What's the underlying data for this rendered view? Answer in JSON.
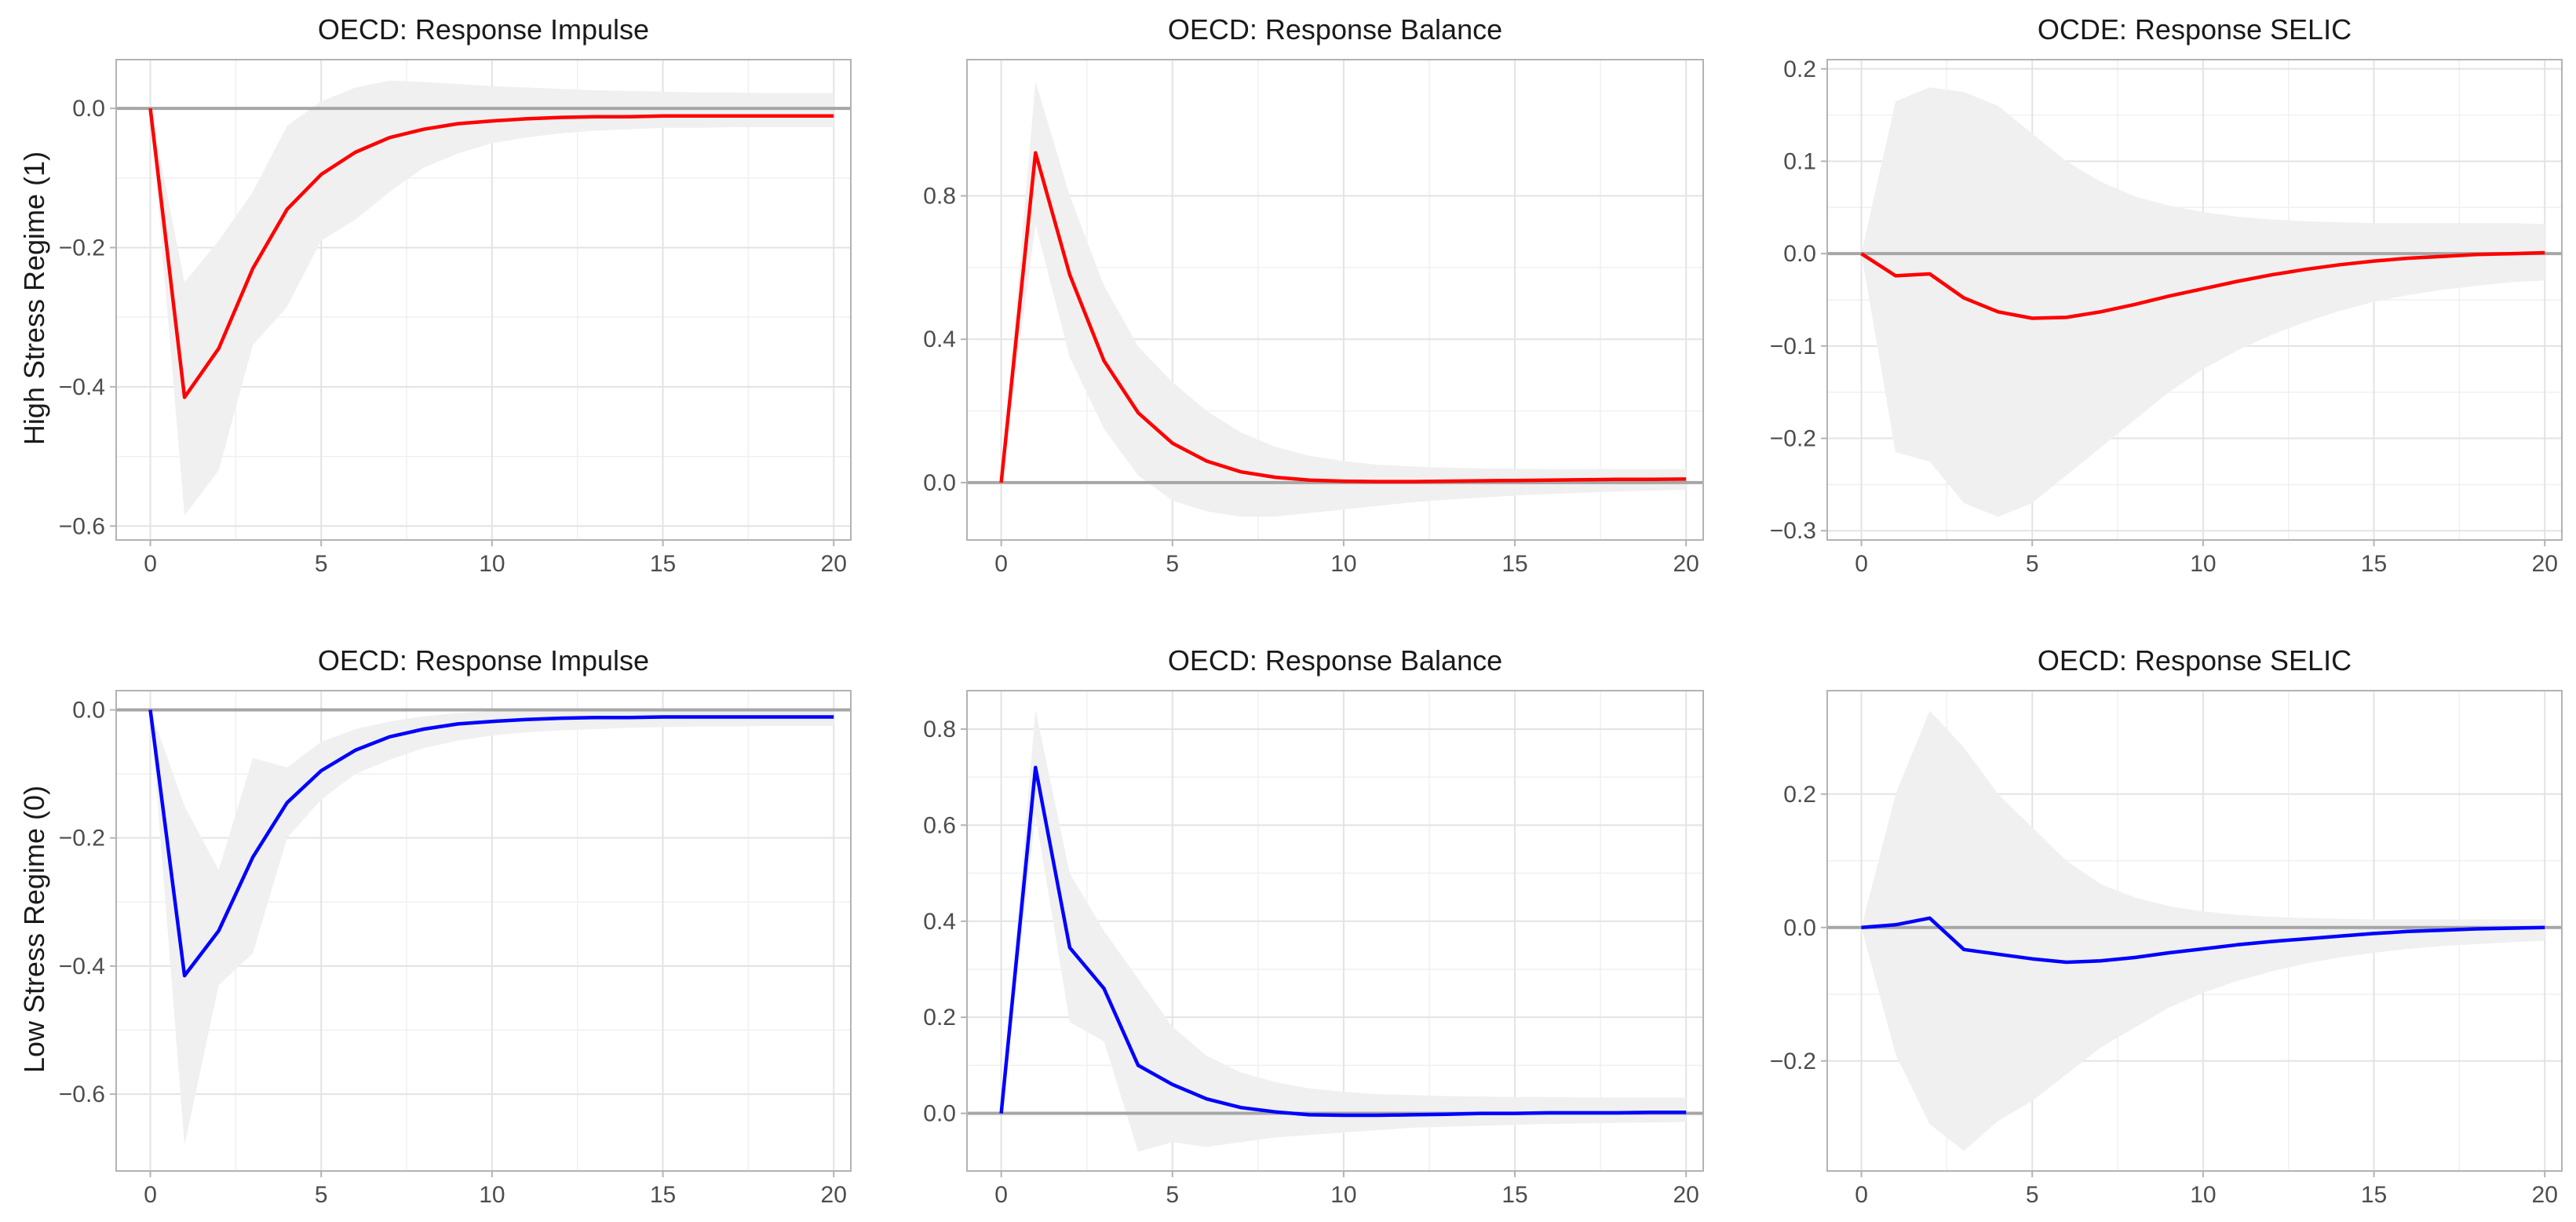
{
  "figure": {
    "row_labels": [
      "High Stress Regime (1)",
      "Low Stress Regime (0)"
    ]
  },
  "colors": {
    "regime_high": "#ff0000",
    "regime_low": "#0000ff",
    "band": "#f0f0f0"
  },
  "chart_data": [
    {
      "type": "line",
      "title": "OECD: Response Impulse",
      "x": [
        0,
        1,
        2,
        3,
        4,
        5,
        6,
        7,
        8,
        9,
        10,
        11,
        12,
        13,
        14,
        15,
        16,
        17,
        18,
        19,
        20
      ],
      "xlim": [
        -1,
        20.5
      ],
      "xticks": [
        0,
        5,
        10,
        15,
        20
      ],
      "ylim": [
        -0.62,
        0.07
      ],
      "yticks": [
        -0.6,
        -0.4,
        -0.2,
        0.0
      ],
      "ytick_labels": [
        "−0.6",
        "−0.4",
        "−0.2",
        "0.0"
      ],
      "series": [
        {
          "name": "High Stress Regime (1)",
          "color": "#ff0000",
          "values": [
            0,
            -0.415,
            -0.345,
            -0.23,
            -0.145,
            -0.095,
            -0.063,
            -0.042,
            -0.03,
            -0.022,
            -0.018,
            -0.015,
            -0.013,
            -0.012,
            -0.012,
            -0.011,
            -0.011,
            -0.011,
            -0.011,
            -0.011,
            -0.011
          ],
          "lower": [
            0,
            -0.585,
            -0.52,
            -0.34,
            -0.285,
            -0.19,
            -0.16,
            -0.12,
            -0.085,
            -0.065,
            -0.05,
            -0.042,
            -0.036,
            -0.032,
            -0.03,
            -0.028,
            -0.028,
            -0.027,
            -0.027,
            -0.027,
            -0.027
          ],
          "upper": [
            0,
            -0.25,
            -0.19,
            -0.12,
            -0.025,
            0.01,
            0.03,
            0.04,
            0.038,
            0.035,
            0.032,
            0.03,
            0.028,
            0.026,
            0.025,
            0.024,
            0.023,
            0.023,
            0.022,
            0.022,
            0.022
          ]
        }
      ]
    },
    {
      "type": "line",
      "title": "OECD: Response Balance",
      "x": [
        0,
        1,
        2,
        3,
        4,
        5,
        6,
        7,
        8,
        9,
        10,
        11,
        12,
        13,
        14,
        15,
        16,
        17,
        18,
        19,
        20
      ],
      "xlim": [
        -1,
        20.5
      ],
      "xticks": [
        0,
        5,
        10,
        15,
        20
      ],
      "ylim": [
        -0.16,
        1.18
      ],
      "yticks": [
        0.0,
        0.4,
        0.8
      ],
      "ytick_labels": [
        "0.0",
        "0.4",
        "0.8"
      ],
      "series": [
        {
          "name": "High Stress Regime (1)",
          "color": "#ff0000",
          "values": [
            0,
            0.92,
            0.58,
            0.34,
            0.195,
            0.11,
            0.06,
            0.03,
            0.015,
            0.007,
            0.004,
            0.003,
            0.003,
            0.004,
            0.005,
            0.006,
            0.007,
            0.008,
            0.009,
            0.009,
            0.01
          ],
          "lower": [
            0,
            0.72,
            0.35,
            0.15,
            0.02,
            -0.05,
            -0.08,
            -0.095,
            -0.095,
            -0.085,
            -0.075,
            -0.065,
            -0.055,
            -0.048,
            -0.042,
            -0.036,
            -0.032,
            -0.028,
            -0.025,
            -0.022,
            -0.02
          ],
          "upper": [
            0,
            1.12,
            0.8,
            0.55,
            0.38,
            0.28,
            0.2,
            0.14,
            0.1,
            0.075,
            0.06,
            0.05,
            0.045,
            0.042,
            0.04,
            0.039,
            0.038,
            0.038,
            0.038,
            0.038,
            0.038
          ]
        }
      ]
    },
    {
      "type": "line",
      "title": "OCDE: Response SELIC",
      "x": [
        0,
        1,
        2,
        3,
        4,
        5,
        6,
        7,
        8,
        9,
        10,
        11,
        12,
        13,
        14,
        15,
        16,
        17,
        18,
        19,
        20
      ],
      "xlim": [
        -1,
        20.5
      ],
      "xticks": [
        0,
        5,
        10,
        15,
        20
      ],
      "ylim": [
        -0.31,
        0.21
      ],
      "yticks": [
        -0.3,
        -0.2,
        -0.1,
        0.0,
        0.1,
        0.2
      ],
      "ytick_labels": [
        "−0.3",
        "−0.2",
        "−0.1",
        "0.0",
        "0.1",
        "0.2"
      ],
      "series": [
        {
          "name": "High Stress Regime (1)",
          "color": "#ff0000",
          "values": [
            0,
            -0.024,
            -0.022,
            -0.048,
            -0.063,
            -0.07,
            -0.069,
            -0.063,
            -0.055,
            -0.046,
            -0.038,
            -0.03,
            -0.023,
            -0.017,
            -0.012,
            -0.008,
            -0.005,
            -0.003,
            -0.001,
            0.0,
            0.001
          ],
          "lower": [
            0,
            -0.215,
            -0.225,
            -0.27,
            -0.285,
            -0.27,
            -0.24,
            -0.21,
            -0.18,
            -0.15,
            -0.125,
            -0.105,
            -0.088,
            -0.074,
            -0.062,
            -0.052,
            -0.045,
            -0.039,
            -0.035,
            -0.031,
            -0.029
          ],
          "upper": [
            0,
            0.165,
            0.18,
            0.175,
            0.16,
            0.13,
            0.1,
            0.078,
            0.062,
            0.052,
            0.045,
            0.04,
            0.037,
            0.035,
            0.034,
            0.033,
            0.033,
            0.033,
            0.033,
            0.033,
            0.032
          ]
        }
      ]
    },
    {
      "type": "line",
      "title": "OECD: Response Impulse",
      "x": [
        0,
        1,
        2,
        3,
        4,
        5,
        6,
        7,
        8,
        9,
        10,
        11,
        12,
        13,
        14,
        15,
        16,
        17,
        18,
        19,
        20
      ],
      "xlim": [
        -1,
        20.5
      ],
      "xticks": [
        0,
        5,
        10,
        15,
        20
      ],
      "ylim": [
        -0.72,
        0.03
      ],
      "yticks": [
        -0.6,
        -0.4,
        -0.2,
        0.0
      ],
      "ytick_labels": [
        "−0.6",
        "−0.4",
        "−0.2",
        "0.0"
      ],
      "series": [
        {
          "name": "Low Stress Regime (0)",
          "color": "#0000ff",
          "values": [
            0,
            -0.415,
            -0.345,
            -0.23,
            -0.145,
            -0.095,
            -0.063,
            -0.042,
            -0.03,
            -0.022,
            -0.018,
            -0.015,
            -0.013,
            -0.012,
            -0.012,
            -0.011,
            -0.011,
            -0.011,
            -0.011,
            -0.011,
            -0.011
          ],
          "lower": [
            0,
            -0.68,
            -0.43,
            -0.38,
            -0.2,
            -0.14,
            -0.1,
            -0.078,
            -0.06,
            -0.048,
            -0.04,
            -0.035,
            -0.032,
            -0.03,
            -0.028,
            -0.027,
            -0.026,
            -0.026,
            -0.025,
            -0.025,
            -0.025
          ],
          "upper": [
            0,
            -0.15,
            -0.25,
            -0.075,
            -0.09,
            -0.05,
            -0.03,
            -0.018,
            -0.01,
            -0.005,
            -0.002,
            0.0,
            0.0,
            0.001,
            0.001,
            0.001,
            0.001,
            0.001,
            0.001,
            0.001,
            0.001
          ]
        }
      ]
    },
    {
      "type": "line",
      "title": "OECD: Response Balance",
      "x": [
        0,
        1,
        2,
        3,
        4,
        5,
        6,
        7,
        8,
        9,
        10,
        11,
        12,
        13,
        14,
        15,
        16,
        17,
        18,
        19,
        20
      ],
      "xlim": [
        -1,
        20.5
      ],
      "xticks": [
        0,
        5,
        10,
        15,
        20
      ],
      "ylim": [
        -0.12,
        0.88
      ],
      "yticks": [
        0.0,
        0.2,
        0.4,
        0.6,
        0.8
      ],
      "ytick_labels": [
        "0.0",
        "0.2",
        "0.4",
        "0.6",
        "0.8"
      ],
      "series": [
        {
          "name": "Low Stress Regime (0)",
          "color": "#0000ff",
          "values": [
            0,
            0.72,
            0.345,
            0.26,
            0.1,
            0.06,
            0.03,
            0.012,
            0.003,
            -0.003,
            -0.004,
            -0.004,
            -0.003,
            -0.002,
            0.0,
            0.0,
            0.001,
            0.001,
            0.001,
            0.002,
            0.002
          ],
          "lower": [
            0,
            0.62,
            0.19,
            0.15,
            -0.08,
            -0.06,
            -0.07,
            -0.06,
            -0.05,
            -0.045,
            -0.04,
            -0.035,
            -0.03,
            -0.028,
            -0.026,
            -0.024,
            -0.022,
            -0.021,
            -0.02,
            -0.019,
            -0.018
          ],
          "upper": [
            0,
            0.84,
            0.5,
            0.38,
            0.28,
            0.18,
            0.12,
            0.085,
            0.065,
            0.052,
            0.045,
            0.04,
            0.038,
            0.036,
            0.035,
            0.034,
            0.034,
            0.033,
            0.033,
            0.033,
            0.033
          ]
        }
      ]
    },
    {
      "type": "line",
      "title": "OECD: Response SELIC",
      "x": [
        0,
        1,
        2,
        3,
        4,
        5,
        6,
        7,
        8,
        9,
        10,
        11,
        12,
        13,
        14,
        15,
        16,
        17,
        18,
        19,
        20
      ],
      "xlim": [
        -1,
        20.5
      ],
      "xticks": [
        0,
        5,
        10,
        15,
        20
      ],
      "ylim": [
        -0.365,
        0.355
      ],
      "yticks": [
        -0.2,
        0.0,
        0.2
      ],
      "ytick_labels": [
        "−0.2",
        "0.0",
        "0.2"
      ],
      "series": [
        {
          "name": "Low Stress Regime (0)",
          "color": "#0000ff",
          "values": [
            0,
            0.004,
            0.014,
            -0.033,
            -0.04,
            -0.047,
            -0.052,
            -0.05,
            -0.045,
            -0.038,
            -0.032,
            -0.026,
            -0.021,
            -0.017,
            -0.013,
            -0.009,
            -0.006,
            -0.004,
            -0.002,
            -0.001,
            0.0
          ],
          "lower": [
            0,
            -0.19,
            -0.295,
            -0.335,
            -0.29,
            -0.26,
            -0.22,
            -0.18,
            -0.15,
            -0.12,
            -0.098,
            -0.08,
            -0.066,
            -0.054,
            -0.045,
            -0.038,
            -0.032,
            -0.028,
            -0.025,
            -0.022,
            -0.02
          ],
          "upper": [
            0,
            0.2,
            0.325,
            0.27,
            0.2,
            0.15,
            0.1,
            0.065,
            0.045,
            0.032,
            0.024,
            0.019,
            0.016,
            0.014,
            0.013,
            0.012,
            0.012,
            0.012,
            0.012,
            0.012,
            0.012
          ]
        }
      ]
    }
  ]
}
